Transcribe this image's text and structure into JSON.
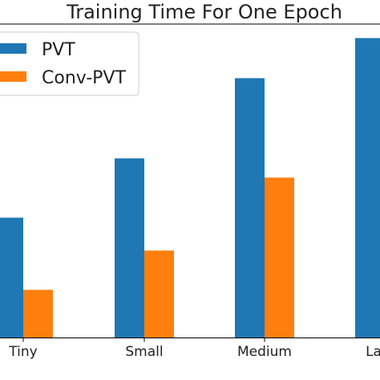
{
  "chart_data": {
    "type": "bar",
    "title": "Training Time For One Epoch",
    "categories": [
      "Tiny",
      "Small",
      "Medium",
      "Large"
    ],
    "series": [
      {
        "name": "PVT",
        "color": "#1f77b4",
        "values": [
          150,
          224,
          324,
          374
        ]
      },
      {
        "name": "Conv-PVT",
        "color": "#ff7f0e",
        "values": [
          60,
          109,
          200,
          null
        ]
      }
    ],
    "xlabel": "",
    "ylabel": "",
    "ylim": [
      0,
      390
    ],
    "grid": false,
    "legend": "top-left"
  }
}
